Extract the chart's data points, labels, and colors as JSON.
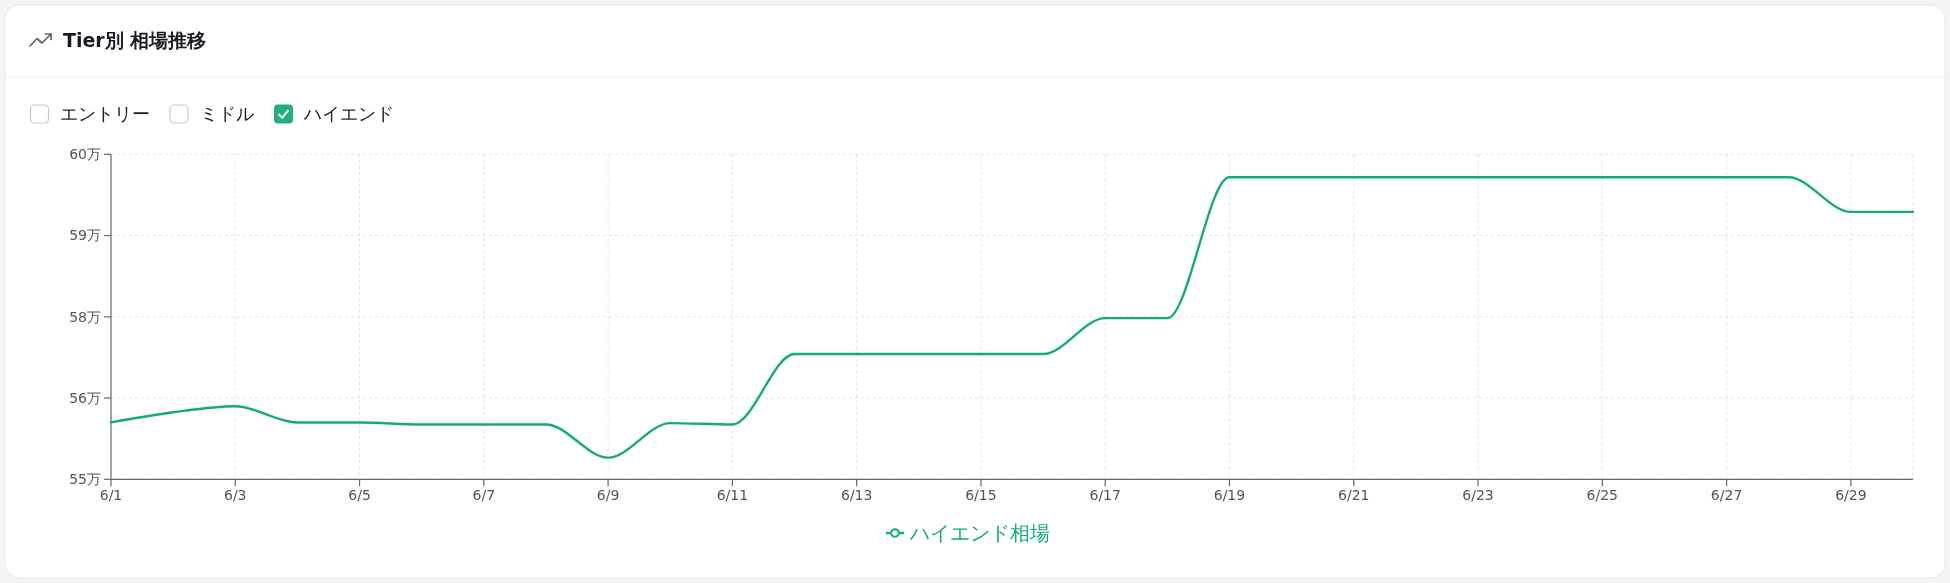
{
  "chart_data": {
    "type": "line",
    "title": "Tier別 相場推移",
    "annotations": [
      "エントリー",
      "ミドル",
      "ハイエンド"
    ],
    "categories": [
      "6/1",
      null,
      "6/3",
      null,
      "6/5",
      null,
      "6/7",
      null,
      "6/9",
      null,
      "6/11",
      null,
      "6/13",
      null,
      "6/15",
      null,
      "6/17",
      null,
      "6/19",
      null,
      "6/21",
      null,
      "6/23",
      null,
      "6/25",
      null,
      "6/27",
      null,
      "6/29",
      null
    ],
    "series": [
      {
        "name": "ハイエンド相場",
        "color": "#13ab7c",
        "values": [
          56.04,
          56.19,
          56.28,
          56.04,
          56.04,
          56.01,
          56.01,
          56.01,
          55.52,
          56.03,
          56.01,
          57.05,
          57.05,
          57.05,
          57.05,
          57.05,
          57.58,
          57.58,
          59.66,
          59.66,
          59.66,
          59.66,
          59.66,
          59.66,
          59.66,
          59.66,
          59.66,
          59.66,
          59.15,
          59.15
        ]
      }
    ],
    "ylim": [
      55.2,
      60
    ],
    "yticks": [
      {
        "value": 55.2,
        "label": "55万"
      },
      {
        "value": 56.4,
        "label": "56万"
      },
      {
        "value": 57.6,
        "label": "58万"
      },
      {
        "value": 58.8,
        "label": "59万"
      },
      {
        "value": 60,
        "label": "60万"
      }
    ],
    "grid": true,
    "legend": "bottom",
    "marker": "none",
    "line_style": "solid"
  }
}
